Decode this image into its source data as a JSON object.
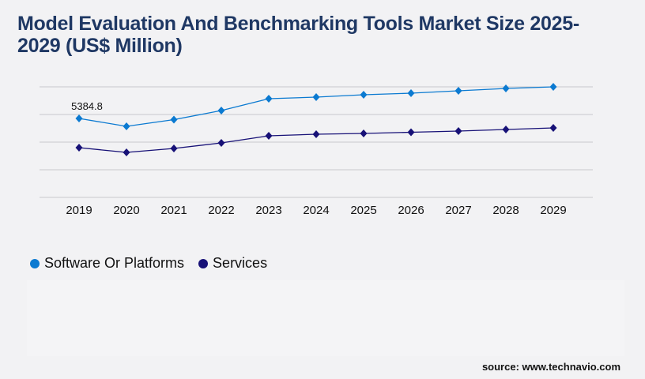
{
  "title": "Model Evaluation And Benchmarking Tools Market Size 2025-2029 (US$ Million)",
  "source": "source: www.technavio.com",
  "chart_data": {
    "type": "line",
    "title": "Model Evaluation And Benchmarking Tools Market Size 2025-2029 (US$ Million)",
    "categories": [
      "2019",
      "2020",
      "2021",
      "2022",
      "2023",
      "2024",
      "2025",
      "2026",
      "2027",
      "2028",
      "2029"
    ],
    "series": [
      {
        "name": "Software Or Platforms",
        "color": "#0b7ad1",
        "values": [
          5384.8,
          4846,
          5304,
          5923,
          6731,
          6839,
          7000,
          7108,
          7270,
          7431,
          7539
        ]
      },
      {
        "name": "Services",
        "color": "#171177",
        "values": [
          3392,
          3069,
          3339,
          3716,
          4200,
          4308,
          4362,
          4443,
          4523,
          4631,
          4739
        ]
      }
    ],
    "data_labels": [
      {
        "series": "Software Or Platforms",
        "category": "2019",
        "text": "5384.8"
      }
    ],
    "ylim": [
      0,
      7540
    ],
    "grid": true,
    "legend": "bottom-left",
    "marker": "diamond"
  }
}
